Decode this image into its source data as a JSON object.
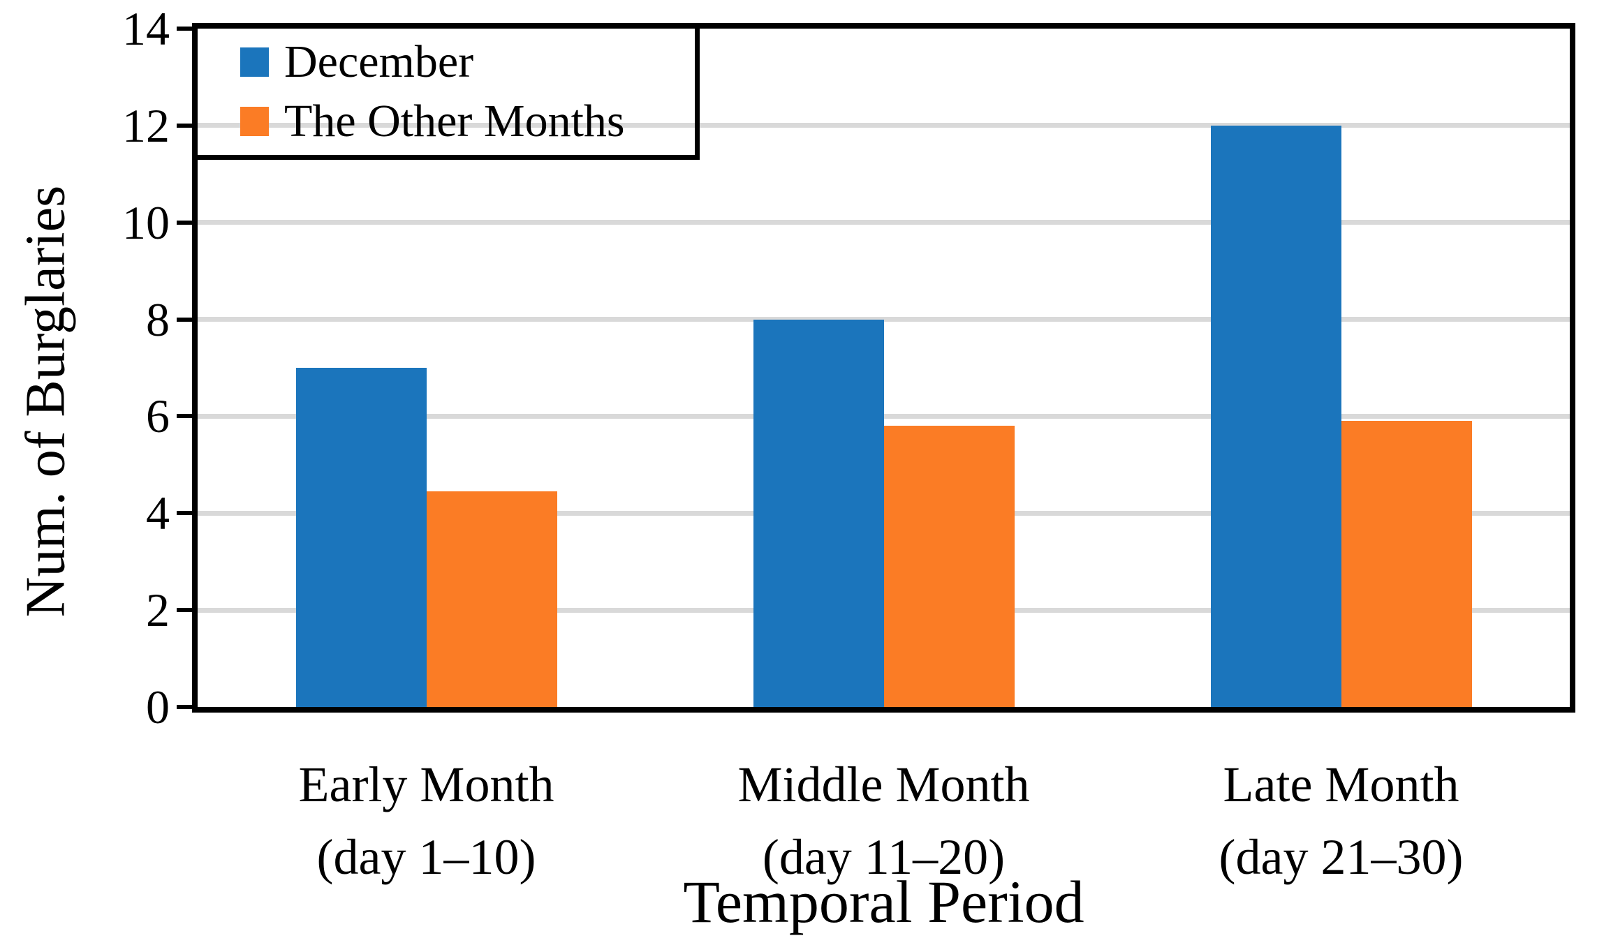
{
  "chart_data": {
    "type": "bar",
    "title": "",
    "categories": [
      {
        "label": "Early Month",
        "sublabel": "(day 1–10)"
      },
      {
        "label": "Middle Month",
        "sublabel": "(day 11–20)"
      },
      {
        "label": "Late Month",
        "sublabel": "(day 21–30)"
      }
    ],
    "series": [
      {
        "name": "December",
        "color": "#1B75BC",
        "values": [
          7,
          8,
          12
        ]
      },
      {
        "name": "The Other Months",
        "color": "#FB7C25",
        "values": [
          4.45,
          5.8,
          5.9
        ]
      }
    ],
    "xlabel": "Temporal Period",
    "ylabel": "Num. of Burglaries",
    "ylim": [
      0,
      14
    ],
    "ytick_step": 2,
    "y_tick_labels": [
      "0",
      "2",
      "4",
      "6",
      "8",
      "10",
      "12",
      "14"
    ],
    "grid": "horizontal",
    "gridline_color": "#D9D9D9",
    "axis_color": "#000000",
    "legend_position": "top-left"
  }
}
